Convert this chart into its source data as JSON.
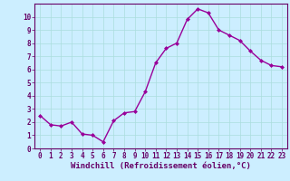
{
  "x": [
    0,
    1,
    2,
    3,
    4,
    5,
    6,
    7,
    8,
    9,
    10,
    11,
    12,
    13,
    14,
    15,
    16,
    17,
    18,
    19,
    20,
    21,
    22,
    23
  ],
  "y": [
    2.5,
    1.8,
    1.7,
    2.0,
    1.1,
    1.0,
    0.5,
    2.1,
    2.7,
    2.8,
    4.3,
    6.5,
    7.6,
    8.0,
    9.8,
    10.6,
    10.3,
    9.0,
    8.6,
    8.2,
    7.4,
    6.7,
    6.3,
    6.2
  ],
  "line_color": "#990099",
  "marker": "D",
  "marker_size": 2,
  "bg_color": "#cceeff",
  "grid_color": "#aadddd",
  "xlabel": "Windchill (Refroidissement éolien,°C)",
  "xlabel_color": "#660066",
  "ylim": [
    0,
    11
  ],
  "xlim": [
    -0.5,
    23.5
  ],
  "yticks": [
    0,
    1,
    2,
    3,
    4,
    5,
    6,
    7,
    8,
    9,
    10
  ],
  "xticks": [
    0,
    1,
    2,
    3,
    4,
    5,
    6,
    7,
    8,
    9,
    10,
    11,
    12,
    13,
    14,
    15,
    16,
    17,
    18,
    19,
    20,
    21,
    22,
    23
  ],
  "tick_label_color": "#660066",
  "tick_label_size": 5.5,
  "xlabel_fontsize": 6.5,
  "spine_color": "#660066",
  "linewidth": 1.0
}
